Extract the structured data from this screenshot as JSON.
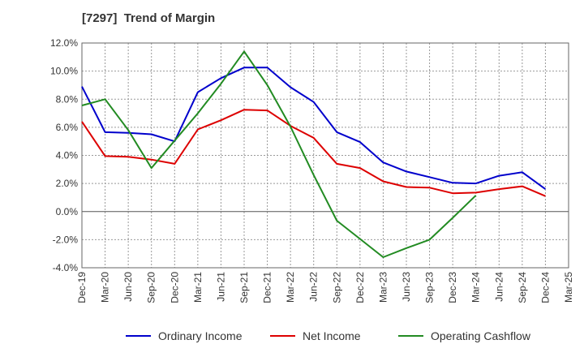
{
  "chart_data": {
    "type": "line",
    "title": "[7297]  Trend of Margin",
    "xlabel": "",
    "ylabel": "",
    "ylim": [
      -4.0,
      12.0
    ],
    "ytick_labels": [
      "-4.0%",
      "-2.0%",
      "0.0%",
      "2.0%",
      "4.0%",
      "6.0%",
      "8.0%",
      "10.0%",
      "12.0%"
    ],
    "yticks": [
      -4,
      -2,
      0,
      2,
      4,
      6,
      8,
      10,
      12
    ],
    "categories": [
      "Dec-19",
      "Mar-20",
      "Jun-20",
      "Sep-20",
      "Dec-20",
      "Mar-21",
      "Jun-21",
      "Sep-21",
      "Dec-21",
      "Mar-22",
      "Jun-22",
      "Sep-22",
      "Dec-22",
      "Mar-23",
      "Jun-23",
      "Sep-23",
      "Dec-23",
      "Mar-24",
      "Jun-24",
      "Sep-24",
      "Dec-24",
      "Mar-25"
    ],
    "grid": true,
    "legend_position": "bottom",
    "series": [
      {
        "name": "Ordinary Income",
        "color": "#0000cc",
        "values": [
          8.9,
          5.65,
          5.6,
          5.5,
          5.0,
          8.5,
          9.5,
          10.25,
          10.25,
          8.85,
          7.8,
          5.65,
          4.95,
          3.5,
          2.85,
          2.45,
          2.05,
          2.0,
          2.55,
          2.8,
          1.6,
          null
        ]
      },
      {
        "name": "Net Income",
        "color": "#dd0000",
        "values": [
          6.4,
          3.95,
          3.9,
          3.7,
          3.4,
          5.85,
          6.5,
          7.25,
          7.2,
          6.1,
          5.25,
          3.4,
          3.1,
          2.15,
          1.75,
          1.7,
          1.3,
          1.35,
          1.6,
          1.8,
          1.1,
          null
        ]
      },
      {
        "name": "Operating Cashflow",
        "color": "#228b22",
        "values": [
          7.55,
          8.0,
          5.8,
          3.1,
          5.05,
          7.0,
          9.1,
          11.4,
          9.0,
          6.05,
          2.6,
          -0.65,
          -1.95,
          -3.25,
          -2.6,
          -2.0,
          -0.45,
          1.15,
          null,
          null,
          null,
          null
        ]
      }
    ]
  }
}
